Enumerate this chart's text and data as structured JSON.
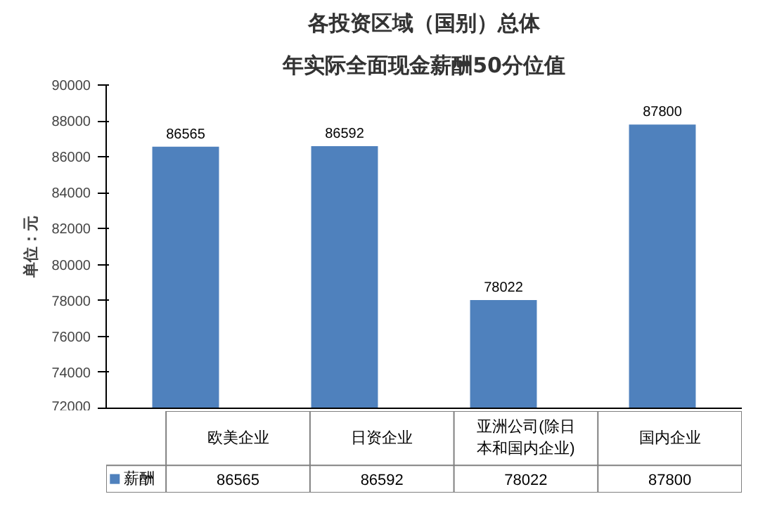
{
  "chart_data": {
    "type": "bar",
    "title": "各投资区域（国别）总体",
    "subtitle": "年实际全面现金薪酬50分位值",
    "ylabel": "单位：元",
    "categories": [
      "欧美企业",
      "日资企业",
      "亚洲公司(除日本和国内企业)",
      "国内企业"
    ],
    "series": [
      {
        "name": "薪酬",
        "color": "#4f81bd",
        "values": [
          86565,
          86592,
          78022,
          87800
        ],
        "value_labels": [
          "86565",
          "86592",
          "78022",
          "87800"
        ]
      }
    ],
    "ylim": [
      72000,
      90000
    ],
    "yticks": [
      72000,
      74000,
      76000,
      78000,
      80000,
      82000,
      84000,
      86000,
      88000,
      90000
    ],
    "data_labels": true,
    "legend": "bottom",
    "grid": false
  }
}
